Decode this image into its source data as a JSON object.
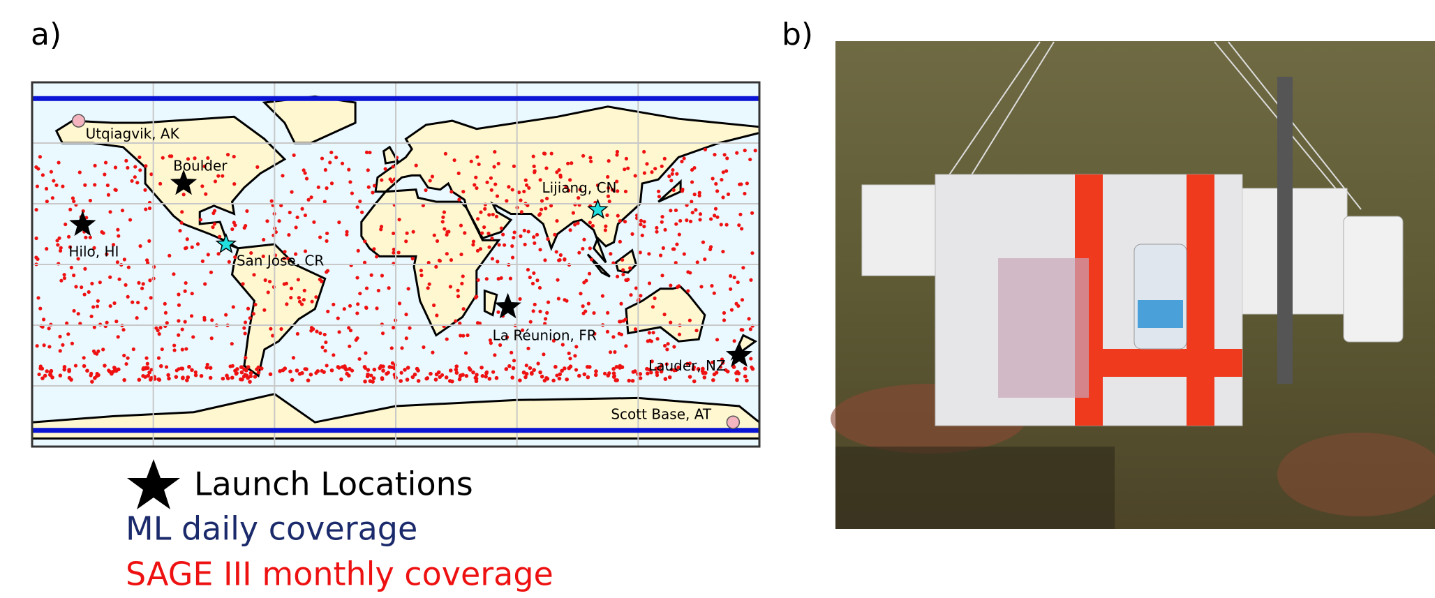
{
  "panel_a": {
    "label": "a)"
  },
  "panel_b": {
    "label": "b)"
  },
  "map": {
    "locations": [
      {
        "label": "Utqiagvik, AK"
      },
      {
        "label": "Boulder"
      },
      {
        "label": "Hilo, HI"
      },
      {
        "label": "San Jose, CR"
      },
      {
        "label": "Lijiang, CN"
      },
      {
        "label": "La Réunion, FR"
      },
      {
        "label": "Lauder, NZ"
      },
      {
        "label": "Scott Base, AT"
      }
    ]
  },
  "legend": {
    "items": [
      "Launch Locations",
      "ML daily coverage",
      "SAGE III monthly coverage"
    ]
  }
}
